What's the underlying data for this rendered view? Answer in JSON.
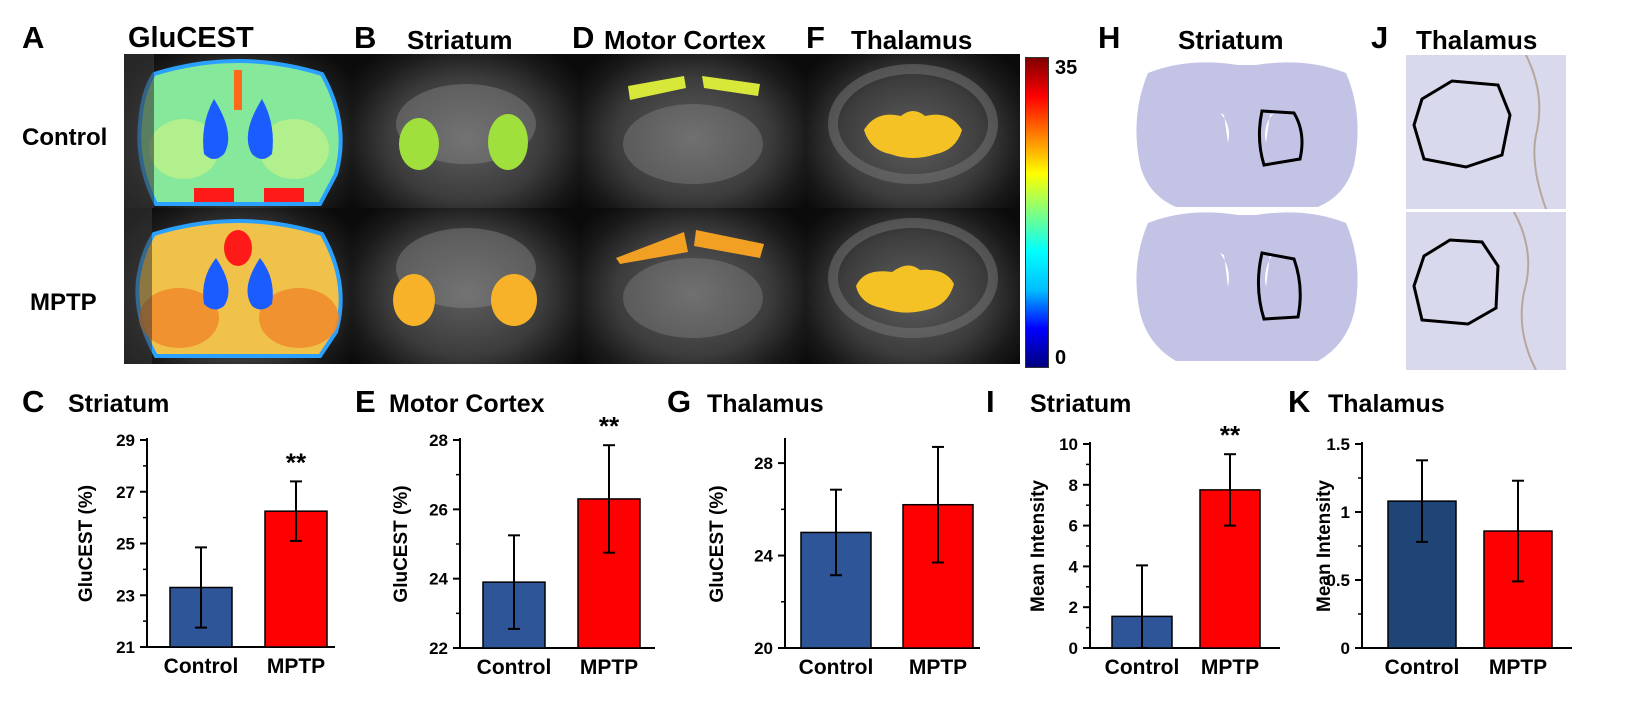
{
  "figure": {
    "panel_a": {
      "letter": "A",
      "title": "GluCEST"
    },
    "panel_b": {
      "letter": "B",
      "title": "Striatum"
    },
    "panel_d": {
      "letter": "D",
      "title": "Motor Cortex"
    },
    "panel_f": {
      "letter": "F",
      "title": "Thalamus"
    },
    "panel_h": {
      "letter": "H",
      "title": "Striatum"
    },
    "panel_j": {
      "letter": "J",
      "title": "Thalamus"
    },
    "rows": {
      "control": "Control",
      "mptp": "MPTP"
    },
    "colorbar": {
      "max_label": "35",
      "min_label": "0",
      "colors": [
        "#00007f",
        "#0000ff",
        "#00bfff",
        "#00ffff",
        "#7fff7f",
        "#ffff00",
        "#ff7f00",
        "#ff0000",
        "#7f0000"
      ]
    }
  },
  "chart_data": [
    {
      "id": "C",
      "type": "bar",
      "letter": "C",
      "title": "Striatum",
      "ylabel": "GluCEST (%)",
      "categories": [
        "Control",
        "MPTP"
      ],
      "values": [
        23.3,
        26.25
      ],
      "errors": [
        1.55,
        1.15
      ],
      "colors": [
        "#2e5597",
        "#ff0000"
      ],
      "ylim": [
        21,
        29
      ],
      "yticks": [
        21,
        23,
        25,
        27,
        29
      ],
      "ytick_labels": [
        "21",
        "23",
        "25",
        "27",
        "29"
      ],
      "annotations": [
        {
          "category": "MPTP",
          "text": "**"
        }
      ]
    },
    {
      "id": "E",
      "type": "bar",
      "letter": "E",
      "title": "Motor Cortex",
      "ylabel": "GluCEST (%)",
      "categories": [
        "Control",
        "MPTP"
      ],
      "values": [
        23.9,
        26.3
      ],
      "errors": [
        1.35,
        1.55
      ],
      "colors": [
        "#2e5597",
        "#ff0000"
      ],
      "ylim": [
        22,
        28
      ],
      "yticks": [
        22,
        24,
        26,
        28
      ],
      "ytick_labels": [
        "22",
        "24",
        "26",
        "28"
      ],
      "annotations": [
        {
          "category": "MPTP",
          "text": "**"
        }
      ]
    },
    {
      "id": "G",
      "type": "bar",
      "letter": "G",
      "title": "Thalamus",
      "ylabel": "GluCEST (%)",
      "categories": [
        "Control",
        "MPTP"
      ],
      "values": [
        25.0,
        26.2
      ],
      "errors": [
        1.85,
        2.5
      ],
      "colors": [
        "#2e5597",
        "#ff0000"
      ],
      "ylim": [
        20,
        29
      ],
      "yticks": [
        20,
        24,
        28
      ],
      "ytick_labels": [
        "20",
        "24",
        "28"
      ],
      "annotations": []
    },
    {
      "id": "I",
      "type": "bar",
      "letter": "I",
      "title": "Striatum",
      "ylabel": "Mean Intensity",
      "categories": [
        "Control",
        "MPTP"
      ],
      "values": [
        1.55,
        7.75
      ],
      "errors": [
        2.5,
        1.75
      ],
      "colors": [
        "#2e5597",
        "#ff0000"
      ],
      "ylim": [
        0,
        10
      ],
      "yticks": [
        0,
        2,
        4,
        6,
        8,
        10
      ],
      "ytick_labels": [
        "0",
        "2",
        "4",
        "6",
        "8",
        "10"
      ],
      "annotations": [
        {
          "category": "MPTP",
          "text": "**"
        }
      ]
    },
    {
      "id": "K",
      "type": "bar",
      "letter": "K",
      "title": "Thalamus",
      "ylabel": "Mean Intensity",
      "categories": [
        "Control",
        "MPTP"
      ],
      "values": [
        1.08,
        0.86
      ],
      "errors": [
        0.3,
        0.37
      ],
      "colors": [
        "#1f4577",
        "#ff0000"
      ],
      "ylim": [
        0,
        1.5
      ],
      "yticks": [
        0,
        0.5,
        1,
        1.5
      ],
      "ytick_labels": [
        "0",
        "0.5",
        "1",
        "1.5"
      ],
      "annotations": []
    }
  ]
}
